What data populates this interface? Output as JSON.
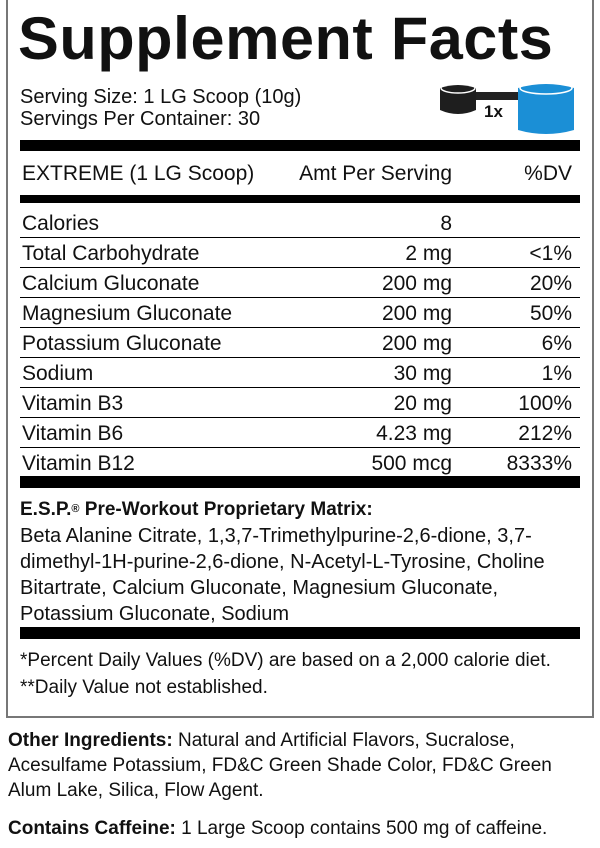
{
  "title": "Supplement Facts",
  "serving_size": "Serving Size: 1 LG Scoop (10g)",
  "servings_per_container": "Servings Per Container: 30",
  "scoop_icon": {
    "label": "1x",
    "scoop_color": "#1e1e1e",
    "cup_color": "#1b8fd6"
  },
  "columns": {
    "name": "EXTREME (1 LG Scoop)",
    "amount": "Amt Per Serving",
    "dv": "%DV"
  },
  "rows": [
    {
      "name": "Calories",
      "amount": "8",
      "dv": ""
    },
    {
      "name": "Total Carbohydrate",
      "amount": "2 mg",
      "dv": "<1%"
    },
    {
      "name": "Calcium Gluconate",
      "amount": "200 mg",
      "dv": "20%"
    },
    {
      "name": "Magnesium Gluconate",
      "amount": "200 mg",
      "dv": "50%"
    },
    {
      "name": "Potassium Gluconate",
      "amount": "200 mg",
      "dv": "6%"
    },
    {
      "name": "Sodium",
      "amount": "30 mg",
      "dv": "1%"
    },
    {
      "name": "Vitamin B3",
      "amount": "20 mg",
      "dv": "100%"
    },
    {
      "name": "Vitamin B6",
      "amount": "4.23 mg",
      "dv": "212%"
    },
    {
      "name": "Vitamin B12",
      "amount": "500 mcg",
      "dv": "8333%"
    }
  ],
  "matrix": {
    "title_prefix": "E.S.P.",
    "registered": "®",
    "title_rest": " Pre-Workout Proprietary Matrix:",
    "ingredients": "Beta Alanine Citrate, 1,3,7-Trimethylpurine-2,6-dione, 3,7-dimethyl-1H-purine-2,6-dione, N-Acetyl-L-Tyrosine, Choline Bitartrate, Calcium Gluconate, Magnesium Gluconate, Potassium Gluconate, Sodium"
  },
  "footnotes": [
    "*Percent Daily Values (%DV) are based on a 2,000 calorie diet.",
    "**Daily Value not established."
  ],
  "other_ingredients": {
    "label": "Other Ingredients:",
    "text": " Natural and Artificial Flavors, Sucralose, Acesulfame Potassium, FD&C Green Shade Color, FD&C Green Alum Lake, Silica, Flow Agent."
  },
  "caffeine": {
    "label": "Contains Caffeine:",
    "text": " 1 Large Scoop contains 500 mg of caffeine."
  }
}
